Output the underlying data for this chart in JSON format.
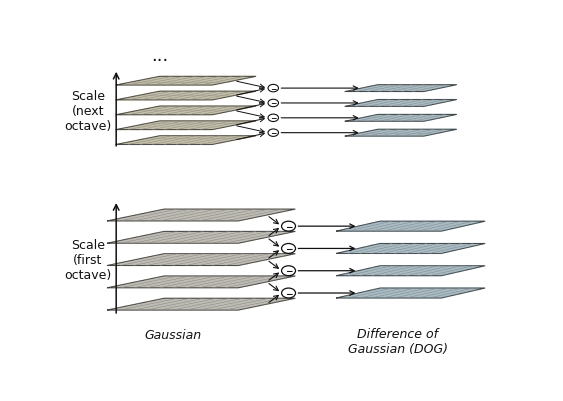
{
  "bg_color": "#ffffff",
  "gauss_color_top": "#d8d0b0",
  "gauss_color_bot": "#d0ccc0",
  "gauss_edge": "#444444",
  "dog_color": "#b0ccd8",
  "dog_edge": "#444444",
  "grid_color": "#888888",
  "arrow_color": "#111111",
  "circle_color": "#ffffff",
  "circle_edge": "#111111",
  "text_color": "#111111",
  "label_gaussian": "Gaussian",
  "label_dog": "Difference of\nGaussian (DOG)",
  "label_scale_next": "Scale\n(next\noctave)",
  "label_scale_first": "Scale\n(first\noctave)",
  "dots": "...",
  "fontsize_label": 9.0,
  "fontsize_dots": 13
}
